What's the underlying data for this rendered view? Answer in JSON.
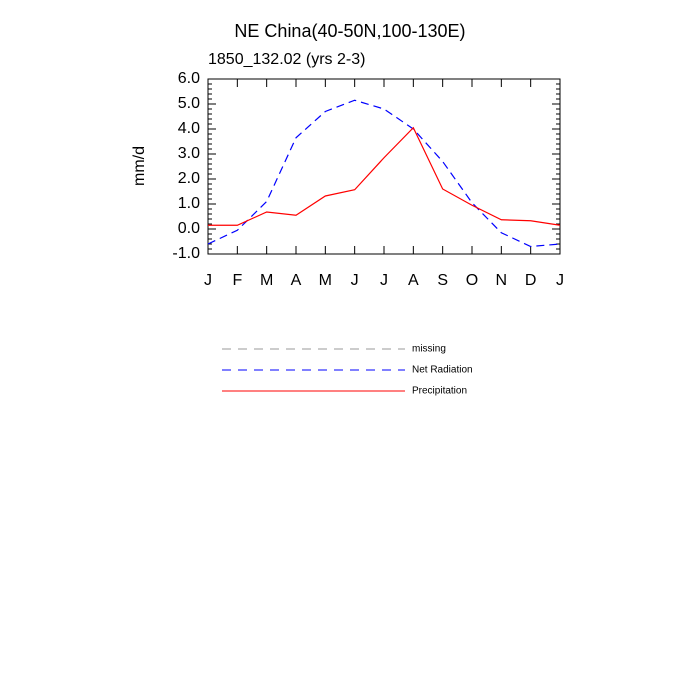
{
  "chart_data": {
    "type": "line",
    "title": "NE China(40-50N,100-130E)",
    "subtitle": "1850_132.02 (yrs 2-3)",
    "y_label": "mm/d",
    "categories": [
      "J",
      "F",
      "M",
      "A",
      "M",
      "J",
      "J",
      "A",
      "S",
      "O",
      "N",
      "D",
      "J"
    ],
    "series": [
      {
        "name": "missing",
        "color": "#999999",
        "dashed": true,
        "values": [
          null,
          null,
          null,
          null,
          null,
          null,
          null,
          null,
          null,
          null,
          null,
          null,
          null
        ]
      },
      {
        "name": "Net Radiation",
        "color": "#0000ff",
        "dashed": true,
        "values": [
          -0.6,
          -0.05,
          1.1,
          3.65,
          4.7,
          5.15,
          4.8,
          4.0,
          2.7,
          1.05,
          -0.15,
          -0.7,
          -0.6
        ]
      },
      {
        "name": "Precipitation",
        "color": "#ff0000",
        "dashed": false,
        "values": [
          0.15,
          0.15,
          0.68,
          0.55,
          1.32,
          1.57,
          2.85,
          4.05,
          1.6,
          0.95,
          0.37,
          0.33,
          0.15
        ]
      }
    ],
    "ylim": [
      -1,
      6
    ],
    "yticks": [
      {
        "value": -1,
        "label": "-1.0"
      },
      {
        "value": 0,
        "label": "0.0"
      },
      {
        "value": 1,
        "label": "1.0"
      },
      {
        "value": 2,
        "label": "2.0"
      },
      {
        "value": 3,
        "label": "3.0"
      },
      {
        "value": 4,
        "label": "4.0"
      },
      {
        "value": 5,
        "label": "5.0"
      },
      {
        "value": 6,
        "label": "6.0"
      }
    ],
    "grid": false
  }
}
